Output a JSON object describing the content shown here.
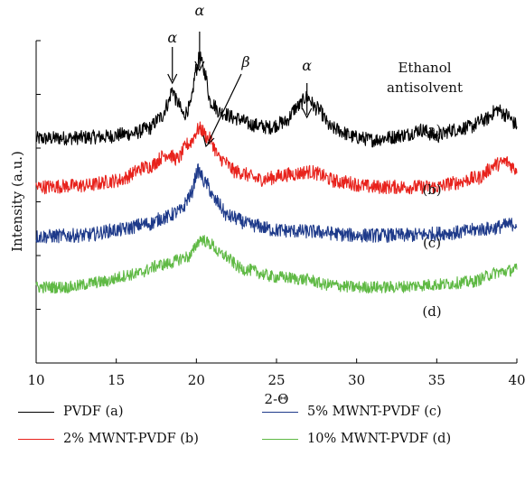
{
  "chart_data": {
    "type": "line",
    "xlabel": "2-Θ",
    "ylabel": "Intensity (a.u.)",
    "xlim": [
      10,
      40
    ],
    "x_ticks": [
      10,
      15,
      20,
      25,
      30,
      35,
      40
    ],
    "grid": false,
    "legend_position": "bottom",
    "annotations": {
      "solvent": [
        "Ethanol",
        "antisolvent"
      ],
      "alpha": "α",
      "beta": "β",
      "peak_markers": [
        {
          "symbol": "α",
          "x": 18.5,
          "series": "PVDF (a)"
        },
        {
          "symbol": "α",
          "x": 20.2,
          "series": "PVDF (a)"
        },
        {
          "symbol": "α",
          "x": 26.9,
          "series": "PVDF (a)"
        },
        {
          "symbol": "β",
          "x": 20.6,
          "series": "2% MWNT-PVDF (b)"
        }
      ]
    },
    "series": [
      {
        "name": "PVDF (a)",
        "tag": "(a)",
        "color": "#000000",
        "noise": 0.28,
        "profile": [
          [
            10,
            0.05
          ],
          [
            12,
            0.08
          ],
          [
            14,
            0.12
          ],
          [
            16,
            0.25
          ],
          [
            17,
            0.45
          ],
          [
            17.8,
            0.9
          ],
          [
            18.2,
            1.4
          ],
          [
            18.5,
            2.0
          ],
          [
            18.8,
            1.5
          ],
          [
            19.2,
            1.0
          ],
          [
            19.6,
            1.3
          ],
          [
            20.0,
            2.8
          ],
          [
            20.2,
            3.3
          ],
          [
            20.5,
            2.7
          ],
          [
            20.9,
            1.5
          ],
          [
            21.5,
            1.1
          ],
          [
            22.5,
            0.85
          ],
          [
            23.5,
            0.6
          ],
          [
            24.5,
            0.5
          ],
          [
            25.5,
            0.7
          ],
          [
            26.3,
            1.3
          ],
          [
            26.9,
            1.7
          ],
          [
            27.5,
            1.25
          ],
          [
            28.5,
            0.45
          ],
          [
            30,
            0.1
          ],
          [
            31,
            0.0
          ],
          [
            32,
            0.1
          ],
          [
            33,
            0.2
          ],
          [
            34,
            0.4
          ],
          [
            35,
            0.15
          ],
          [
            36,
            0.4
          ],
          [
            37,
            0.5
          ],
          [
            38,
            0.8
          ],
          [
            38.8,
            1.2
          ],
          [
            39.3,
            1.0
          ],
          [
            40,
            0.6
          ]
        ]
      },
      {
        "name": "2% MWNT-PVDF (b)",
        "tag": "(b)",
        "color": "#e8221c",
        "noise": 0.28,
        "profile": [
          [
            10,
            0.0
          ],
          [
            13,
            0.05
          ],
          [
            15,
            0.25
          ],
          [
            17,
            0.8
          ],
          [
            18.2,
            1.3
          ],
          [
            18.8,
            1.1
          ],
          [
            19.5,
            1.7
          ],
          [
            20.2,
            2.3
          ],
          [
            20.8,
            1.9
          ],
          [
            21.5,
            1.1
          ],
          [
            22.5,
            0.6
          ],
          [
            24,
            0.3
          ],
          [
            26,
            0.5
          ],
          [
            27,
            0.6
          ],
          [
            29,
            0.2
          ],
          [
            31,
            0.0
          ],
          [
            33,
            0.0
          ],
          [
            35,
            0.0
          ],
          [
            36,
            0.15
          ],
          [
            37.5,
            0.35
          ],
          [
            38.8,
            0.9
          ],
          [
            39.3,
            1.0
          ],
          [
            40,
            0.7
          ]
        ]
      },
      {
        "name": "5% MWNT-PVDF (c)",
        "tag": "(c)",
        "color": "#1e3a8a",
        "noise": 0.28,
        "profile": [
          [
            10,
            0.0
          ],
          [
            13,
            0.05
          ],
          [
            15,
            0.25
          ],
          [
            17,
            0.5
          ],
          [
            18,
            0.75
          ],
          [
            19,
            1.0
          ],
          [
            19.6,
            1.6
          ],
          [
            20.1,
            2.6
          ],
          [
            20.6,
            2.1
          ],
          [
            21.2,
            1.4
          ],
          [
            22,
            0.8
          ],
          [
            23.5,
            0.45
          ],
          [
            25,
            0.25
          ],
          [
            27,
            0.2
          ],
          [
            30,
            0.05
          ],
          [
            33,
            0.05
          ],
          [
            36,
            0.15
          ],
          [
            38,
            0.3
          ],
          [
            40,
            0.5
          ]
        ]
      },
      {
        "name": "10% MWNT-PVDF (d)",
        "tag": "(d)",
        "color": "#5fb944",
        "noise": 0.24,
        "profile": [
          [
            10,
            0.0
          ],
          [
            12,
            0.0
          ],
          [
            14,
            0.2
          ],
          [
            16,
            0.5
          ],
          [
            18,
            0.9
          ],
          [
            19.5,
            1.2
          ],
          [
            20.3,
            1.9
          ],
          [
            20.9,
            1.7
          ],
          [
            21.5,
            1.3
          ],
          [
            23,
            0.7
          ],
          [
            25,
            0.4
          ],
          [
            27,
            0.3
          ],
          [
            28,
            0.1
          ],
          [
            30,
            0.0
          ],
          [
            32,
            0.0
          ],
          [
            35,
            0.1
          ],
          [
            37,
            0.2
          ],
          [
            39,
            0.6
          ],
          [
            40,
            0.7
          ]
        ]
      }
    ]
  }
}
